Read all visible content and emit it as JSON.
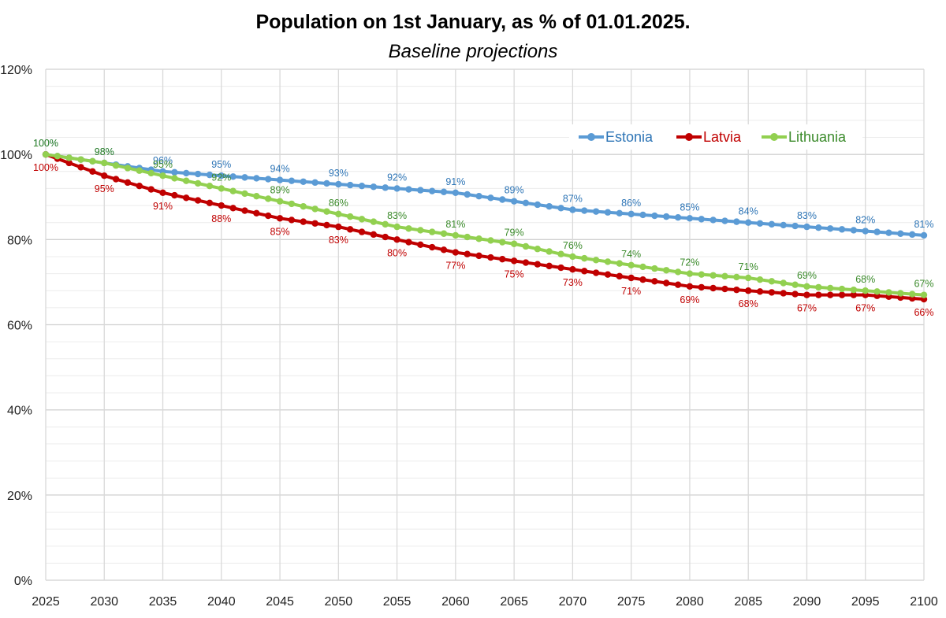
{
  "chart_data": {
    "type": "line",
    "title": "Population on 1st January, as % of 01.01.2025.",
    "subtitle": "Baseline projections",
    "xlabel": "",
    "ylabel": "",
    "ylim": [
      0,
      120
    ],
    "y_ticks": [
      0,
      20,
      40,
      60,
      80,
      100,
      120
    ],
    "y_tick_labels": [
      "0%",
      "20%",
      "40%",
      "60%",
      "80%",
      "100%",
      "120%"
    ],
    "x_ticks": [
      2025,
      2030,
      2035,
      2040,
      2045,
      2050,
      2055,
      2060,
      2065,
      2070,
      2075,
      2080,
      2085,
      2090,
      2095,
      2100
    ],
    "x_tick_labels": [
      "2025",
      "2030",
      "2035",
      "2040",
      "2045",
      "2050",
      "2055",
      "2060",
      "2065",
      "2070",
      "2075",
      "2080",
      "2085",
      "2090",
      "2095",
      "2100"
    ],
    "grid": true,
    "legend_position": "top-right",
    "series": [
      {
        "name": "Estonia",
        "color": "#5B9BD5",
        "label_color": "#2E75B6",
        "start_year": 2025,
        "values": [
          100.0,
          99.6,
          99.2,
          98.8,
          98.4,
          98.0,
          97.6,
          97.2,
          96.8,
          96.4,
          96.0,
          95.8,
          95.6,
          95.4,
          95.2,
          95.0,
          94.8,
          94.6,
          94.4,
          94.2,
          94.0,
          93.8,
          93.6,
          93.4,
          93.2,
          93.0,
          92.8,
          92.6,
          92.4,
          92.2,
          92.0,
          91.8,
          91.6,
          91.4,
          91.2,
          91.0,
          90.6,
          90.2,
          89.8,
          89.4,
          89.0,
          88.6,
          88.2,
          87.8,
          87.4,
          87.0,
          86.8,
          86.6,
          86.4,
          86.2,
          86.0,
          85.8,
          85.6,
          85.4,
          85.2,
          85.0,
          84.8,
          84.6,
          84.4,
          84.2,
          84.0,
          83.8,
          83.6,
          83.4,
          83.2,
          83.0,
          82.8,
          82.6,
          82.4,
          82.2,
          82.0,
          81.8,
          81.6,
          81.4,
          81.2,
          81.0
        ],
        "labels": [
          {
            "year": 2025,
            "text": "100%",
            "pos": "above"
          },
          {
            "year": 2030,
            "text": "98%",
            "pos": "above"
          },
          {
            "year": 2035,
            "text": "96%",
            "pos": "above"
          },
          {
            "year": 2040,
            "text": "95%",
            "pos": "above"
          },
          {
            "year": 2045,
            "text": "94%",
            "pos": "above"
          },
          {
            "year": 2050,
            "text": "93%",
            "pos": "above"
          },
          {
            "year": 2055,
            "text": "92%",
            "pos": "above"
          },
          {
            "year": 2060,
            "text": "91%",
            "pos": "above"
          },
          {
            "year": 2065,
            "text": "89%",
            "pos": "above"
          },
          {
            "year": 2070,
            "text": "87%",
            "pos": "above"
          },
          {
            "year": 2075,
            "text": "86%",
            "pos": "above"
          },
          {
            "year": 2080,
            "text": "85%",
            "pos": "above"
          },
          {
            "year": 2085,
            "text": "84%",
            "pos": "above"
          },
          {
            "year": 2090,
            "text": "83%",
            "pos": "above"
          },
          {
            "year": 2095,
            "text": "82%",
            "pos": "above"
          },
          {
            "year": 2100,
            "text": "81%",
            "pos": "above"
          }
        ]
      },
      {
        "name": "Latvia",
        "color": "#C00000",
        "label_color": "#C00000",
        "start_year": 2025,
        "values": [
          100.0,
          99.0,
          98.0,
          97.0,
          96.0,
          95.0,
          94.2,
          93.4,
          92.6,
          91.8,
          91.0,
          90.4,
          89.8,
          89.2,
          88.6,
          88.0,
          87.4,
          86.8,
          86.2,
          85.6,
          85.0,
          84.6,
          84.2,
          83.8,
          83.4,
          83.0,
          82.4,
          81.8,
          81.2,
          80.6,
          80.0,
          79.4,
          78.8,
          78.2,
          77.6,
          77.0,
          76.6,
          76.2,
          75.8,
          75.4,
          75.0,
          74.6,
          74.2,
          73.8,
          73.4,
          73.0,
          72.6,
          72.2,
          71.8,
          71.4,
          71.0,
          70.6,
          70.2,
          69.8,
          69.4,
          69.0,
          68.8,
          68.6,
          68.4,
          68.2,
          68.0,
          67.8,
          67.6,
          67.4,
          67.2,
          67.0,
          67.0,
          67.0,
          67.0,
          67.0,
          67.0,
          66.8,
          66.6,
          66.4,
          66.2,
          66.0
        ],
        "labels": [
          {
            "year": 2025,
            "text": "100%",
            "pos": "below"
          },
          {
            "year": 2030,
            "text": "95%",
            "pos": "below"
          },
          {
            "year": 2035,
            "text": "91%",
            "pos": "below"
          },
          {
            "year": 2040,
            "text": "88%",
            "pos": "below"
          },
          {
            "year": 2045,
            "text": "85%",
            "pos": "below"
          },
          {
            "year": 2050,
            "text": "83%",
            "pos": "below"
          },
          {
            "year": 2055,
            "text": "80%",
            "pos": "below"
          },
          {
            "year": 2060,
            "text": "77%",
            "pos": "below"
          },
          {
            "year": 2065,
            "text": "75%",
            "pos": "below"
          },
          {
            "year": 2070,
            "text": "73%",
            "pos": "below"
          },
          {
            "year": 2075,
            "text": "71%",
            "pos": "below"
          },
          {
            "year": 2080,
            "text": "69%",
            "pos": "below"
          },
          {
            "year": 2085,
            "text": "68%",
            "pos": "below"
          },
          {
            "year": 2090,
            "text": "67%",
            "pos": "below"
          },
          {
            "year": 2095,
            "text": "67%",
            "pos": "below"
          },
          {
            "year": 2100,
            "text": "66%",
            "pos": "below"
          }
        ]
      },
      {
        "name": "Lithuania",
        "color": "#92D050",
        "label_color": "#3A8A2A",
        "start_year": 2025,
        "values": [
          100.0,
          99.6,
          99.2,
          98.8,
          98.4,
          98.0,
          97.4,
          96.8,
          96.2,
          95.6,
          95.0,
          94.4,
          93.8,
          93.2,
          92.6,
          92.0,
          91.4,
          90.8,
          90.2,
          89.6,
          89.0,
          88.4,
          87.8,
          87.2,
          86.6,
          86.0,
          85.4,
          84.8,
          84.2,
          83.6,
          83.0,
          82.6,
          82.2,
          81.8,
          81.4,
          81.0,
          80.6,
          80.2,
          79.8,
          79.4,
          79.0,
          78.4,
          77.8,
          77.2,
          76.6,
          76.0,
          75.6,
          75.2,
          74.8,
          74.4,
          74.0,
          73.6,
          73.2,
          72.8,
          72.4,
          72.0,
          71.8,
          71.6,
          71.4,
          71.2,
          71.0,
          70.6,
          70.2,
          69.8,
          69.4,
          69.0,
          68.8,
          68.6,
          68.4,
          68.2,
          68.0,
          67.8,
          67.6,
          67.4,
          67.2,
          67.0
        ],
        "labels": [
          {
            "year": 2025,
            "text": "100%",
            "pos": "above"
          },
          {
            "year": 2030,
            "text": "98%",
            "pos": "above"
          },
          {
            "year": 2035,
            "text": "95%",
            "pos": "above"
          },
          {
            "year": 2040,
            "text": "92%",
            "pos": "above"
          },
          {
            "year": 2045,
            "text": "89%",
            "pos": "above"
          },
          {
            "year": 2050,
            "text": "86%",
            "pos": "above"
          },
          {
            "year": 2055,
            "text": "83%",
            "pos": "above"
          },
          {
            "year": 2060,
            "text": "81%",
            "pos": "above"
          },
          {
            "year": 2065,
            "text": "79%",
            "pos": "above"
          },
          {
            "year": 2070,
            "text": "76%",
            "pos": "above"
          },
          {
            "year": 2075,
            "text": "74%",
            "pos": "above"
          },
          {
            "year": 2080,
            "text": "72%",
            "pos": "above"
          },
          {
            "year": 2085,
            "text": "71%",
            "pos": "above"
          },
          {
            "year": 2090,
            "text": "69%",
            "pos": "above"
          },
          {
            "year": 2095,
            "text": "68%",
            "pos": "above"
          },
          {
            "year": 2100,
            "text": "67%",
            "pos": "above"
          }
        ]
      }
    ]
  }
}
